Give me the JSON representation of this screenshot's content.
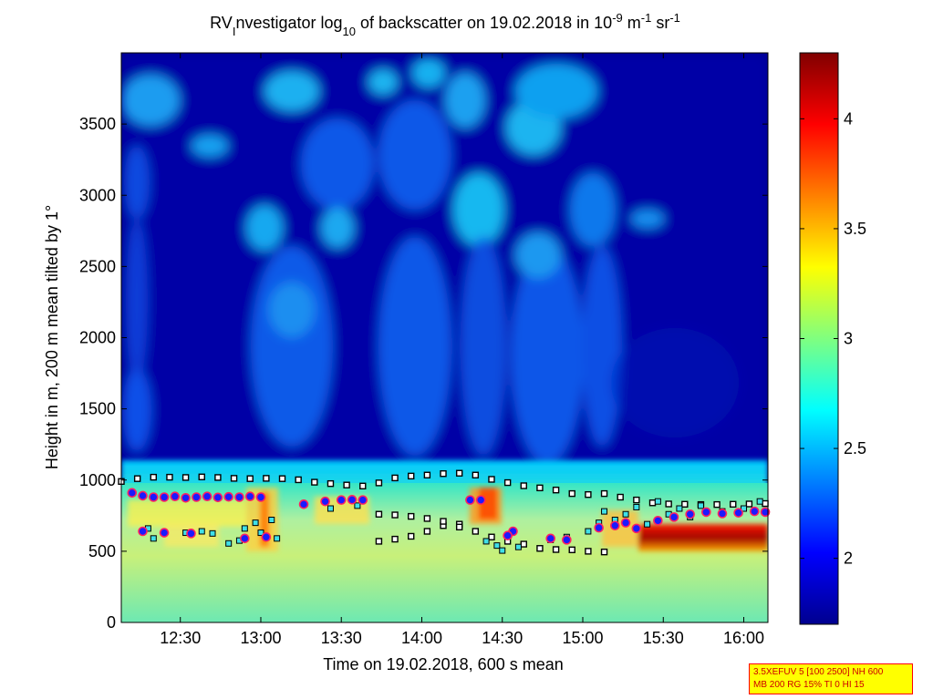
{
  "chart_data": {
    "type": "heatmap",
    "title": {
      "parts": [
        {
          "t": "RV",
          "s": "normal"
        },
        {
          "t": "I",
          "s": "sub"
        },
        {
          "t": "nvestigator log",
          "s": "normal"
        },
        {
          "t": "10",
          "s": "sub"
        },
        {
          "t": " of backscatter on 19.02.2018 in 10",
          "s": "normal"
        },
        {
          "t": "-9",
          "s": "sup"
        },
        {
          "t": " m",
          "s": "normal"
        },
        {
          "t": "-1",
          "s": "sup"
        },
        {
          "t": " sr",
          "s": "normal"
        },
        {
          "t": "-1",
          "s": "sup"
        }
      ]
    },
    "xlabel": "Time on 19.02.2018, 600 s mean",
    "ylabel": "Height in m, 200 m mean tilted by 1°",
    "xlim": [
      "12:08",
      "16:09"
    ],
    "ylim": [
      0,
      4000
    ],
    "x_ticks": [
      "12:30",
      "13:00",
      "13:30",
      "14:00",
      "14:30",
      "15:00",
      "15:30",
      "16:00"
    ],
    "y_ticks": [
      "0",
      "500",
      "1000",
      "1500",
      "2000",
      "2500",
      "3000",
      "3500"
    ],
    "colorbar": {
      "colormap": "jet",
      "range": [
        1.7,
        4.3
      ],
      "ticks": [
        "2",
        "2.5",
        "3",
        "3.5",
        "4"
      ]
    },
    "series": [
      {
        "marker": "black-white-square",
        "points": [
          [
            "12:08",
            990
          ],
          [
            "12:14",
            1010
          ],
          [
            "12:20",
            1020
          ],
          [
            "12:26",
            1020
          ],
          [
            "12:32",
            1018
          ],
          [
            "12:38",
            1022
          ],
          [
            "12:44",
            1018
          ],
          [
            "12:50",
            1012
          ],
          [
            "12:56",
            1010
          ],
          [
            "13:02",
            1012
          ],
          [
            "13:08",
            1010
          ],
          [
            "13:14",
            1002
          ],
          [
            "13:20",
            985
          ],
          [
            "13:26",
            975
          ],
          [
            "13:32",
            965
          ],
          [
            "13:38",
            958
          ],
          [
            "13:44",
            980
          ],
          [
            "13:50",
            1015
          ],
          [
            "13:56",
            1028
          ],
          [
            "14:02",
            1035
          ],
          [
            "14:08",
            1045
          ],
          [
            "14:14",
            1048
          ],
          [
            "14:20",
            1035
          ],
          [
            "14:26",
            1005
          ],
          [
            "14:32",
            982
          ],
          [
            "14:38",
            960
          ],
          [
            "14:44",
            945
          ],
          [
            "14:50",
            930
          ],
          [
            "14:56",
            905
          ],
          [
            "15:02",
            898
          ],
          [
            "15:08",
            905
          ],
          [
            "15:14",
            880
          ],
          [
            "15:20",
            860
          ],
          [
            "15:26",
            840
          ],
          [
            "15:32",
            832
          ],
          [
            "15:38",
            830
          ],
          [
            "15:44",
            828
          ],
          [
            "15:50",
            828
          ],
          [
            "15:56",
            830
          ],
          [
            "16:02",
            832
          ],
          [
            "16:08",
            835
          ],
          [
            "13:44",
            570
          ],
          [
            "13:50",
            585
          ],
          [
            "13:56",
            605
          ],
          [
            "14:02",
            640
          ],
          [
            "14:08",
            680
          ],
          [
            "14:14",
            690
          ],
          [
            "14:20",
            640
          ],
          [
            "14:26",
            600
          ],
          [
            "14:32",
            570
          ],
          [
            "14:38",
            550
          ],
          [
            "14:44",
            520
          ],
          [
            "14:50",
            512
          ],
          [
            "14:56",
            510
          ],
          [
            "15:02",
            500
          ],
          [
            "15:08",
            495
          ],
          [
            "13:44",
            760
          ],
          [
            "13:50",
            755
          ],
          [
            "13:56",
            745
          ],
          [
            "14:02",
            730
          ],
          [
            "14:08",
            710
          ],
          [
            "14:14",
            670
          ]
        ]
      },
      {
        "marker": "cyan-square",
        "points": [
          [
            "12:18",
            660
          ],
          [
            "12:20",
            590
          ],
          [
            "12:32",
            630
          ],
          [
            "12:38",
            640
          ],
          [
            "12:42",
            625
          ],
          [
            "12:48",
            555
          ],
          [
            "12:52",
            575
          ],
          [
            "12:54",
            660
          ],
          [
            "12:58",
            700
          ],
          [
            "13:00",
            630
          ],
          [
            "13:04",
            720
          ],
          [
            "13:06",
            590
          ],
          [
            "13:26",
            800
          ],
          [
            "13:36",
            820
          ],
          [
            "14:24",
            570
          ],
          [
            "14:28",
            540
          ],
          [
            "14:30",
            505
          ],
          [
            "14:36",
            530
          ],
          [
            "14:48",
            580
          ],
          [
            "14:54",
            600
          ],
          [
            "15:02",
            640
          ],
          [
            "15:06",
            700
          ],
          [
            "15:08",
            780
          ],
          [
            "15:12",
            720
          ],
          [
            "15:16",
            760
          ],
          [
            "15:20",
            810
          ],
          [
            "15:24",
            690
          ],
          [
            "15:28",
            850
          ],
          [
            "15:32",
            760
          ],
          [
            "15:36",
            800
          ],
          [
            "15:40",
            740
          ],
          [
            "15:44",
            820
          ],
          [
            "15:52",
            780
          ],
          [
            "16:00",
            800
          ],
          [
            "16:06",
            850
          ]
        ]
      },
      {
        "marker": "blue-dot-red-edge",
        "points": [
          [
            "12:12",
            910
          ],
          [
            "12:16",
            890
          ],
          [
            "12:20",
            880
          ],
          [
            "12:24",
            880
          ],
          [
            "12:28",
            885
          ],
          [
            "12:32",
            875
          ],
          [
            "12:36",
            880
          ],
          [
            "12:40",
            885
          ],
          [
            "12:44",
            878
          ],
          [
            "12:48",
            882
          ],
          [
            "12:52",
            880
          ],
          [
            "12:56",
            885
          ],
          [
            "13:00",
            880
          ],
          [
            "13:16",
            830
          ],
          [
            "13:24",
            850
          ],
          [
            "13:30",
            860
          ],
          [
            "13:34",
            862
          ],
          [
            "13:38",
            860
          ],
          [
            "14:18",
            860
          ],
          [
            "14:22",
            860
          ],
          [
            "14:34",
            640
          ],
          [
            "15:06",
            665
          ],
          [
            "15:12",
            680
          ],
          [
            "15:16",
            700
          ],
          [
            "15:20",
            660
          ],
          [
            "15:28",
            715
          ],
          [
            "15:34",
            740
          ],
          [
            "15:40",
            760
          ],
          [
            "15:46",
            775
          ],
          [
            "15:52",
            765
          ],
          [
            "15:58",
            770
          ],
          [
            "16:04",
            780
          ],
          [
            "16:08",
            775
          ],
          [
            "12:16",
            640
          ],
          [
            "12:24",
            630
          ],
          [
            "12:34",
            625
          ],
          [
            "12:54",
            590
          ],
          [
            "13:02",
            600
          ],
          [
            "14:32",
            610
          ],
          [
            "14:48",
            590
          ],
          [
            "14:54",
            580
          ]
        ]
      }
    ]
  },
  "info_box": {
    "line1": "3.5XEFUV 5 [100 2500] NH 600",
    "line2": "MB 200 RG 15% TI 0 HI 15"
  },
  "colors": {
    "background": "#ffffff",
    "low_signal": "#00008f",
    "info_box_bg": "#ffff00",
    "info_box_border": "#ff0000",
    "info_box_text": "#cc0000"
  }
}
